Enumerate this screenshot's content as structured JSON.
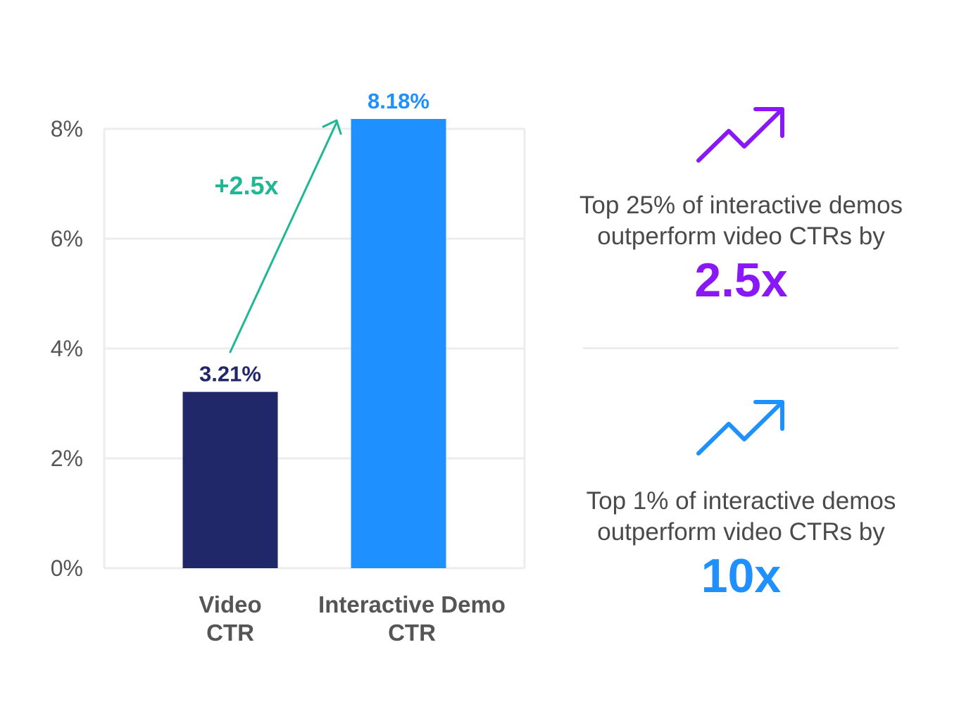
{
  "chart_data": {
    "type": "bar",
    "categories": [
      "Video CTR",
      "Interactive Demo CTR"
    ],
    "category_lines": [
      [
        "Video",
        "CTR"
      ],
      [
        "Interactive Demo",
        "CTR"
      ]
    ],
    "values": [
      3.21,
      8.18
    ],
    "data_labels": [
      "3.21%",
      "8.18%"
    ],
    "colors": [
      "#20286a",
      "#1e90ff"
    ],
    "ylim": [
      0,
      8
    ],
    "yticks": [
      0,
      2,
      4,
      6,
      8
    ],
    "ytick_labels": [
      "0%",
      "2%",
      "4%",
      "6%",
      "8%"
    ],
    "grid": true,
    "annotation": {
      "text": "+2.5x",
      "color": "#1fb895"
    }
  },
  "callouts": [
    {
      "line1": "Top 25% of interactive demos",
      "line2": "outperform video CTRs by",
      "value": "2.5x",
      "color": "#8a17f5",
      "icon": "trending-up-icon"
    },
    {
      "line1": "Top 1% of interactive demos",
      "line2": "outperform video CTRs by",
      "value": "10x",
      "color": "#1e90ff",
      "icon": "trending-up-icon"
    }
  ]
}
